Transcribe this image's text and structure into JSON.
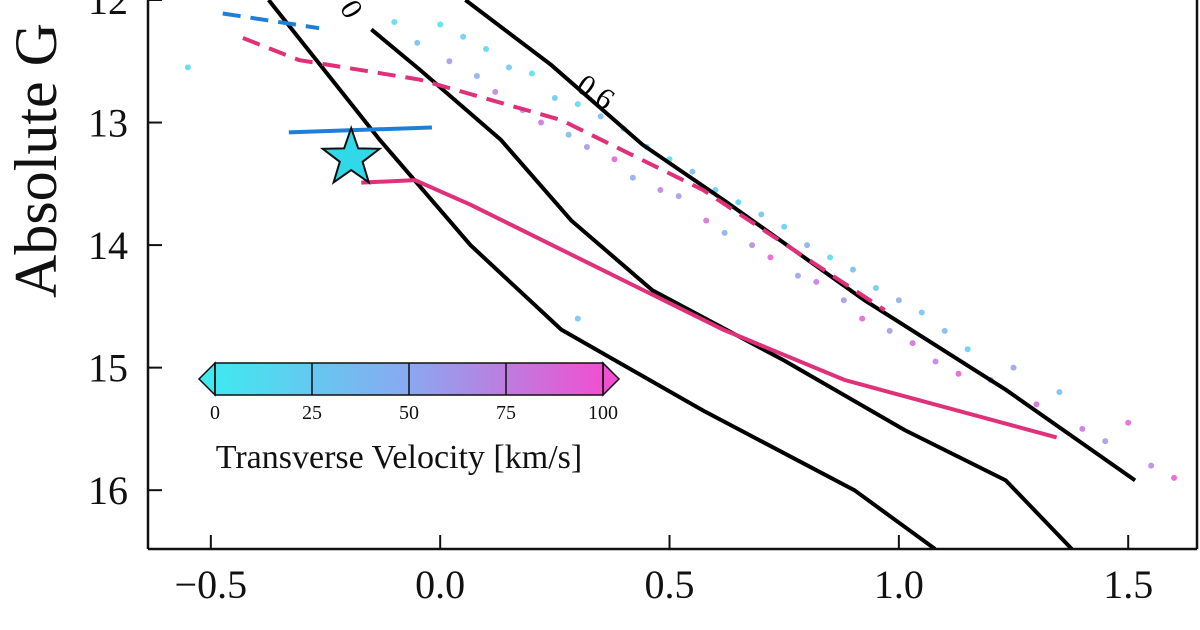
{
  "chart_data": {
    "type": "scatter",
    "ylabel": "Absolute G",
    "xlim": [
      -0.637,
      1.65
    ],
    "ylim": [
      12.0,
      16.48
    ],
    "y_inverted": true,
    "xticks": [
      {
        "value": -0.5,
        "label": "−0.5"
      },
      {
        "value": 0,
        "label": "0.0"
      },
      0.5,
      {
        "value": 1,
        "label": "1.0"
      },
      1.5
    ],
    "yticks": [
      12,
      13,
      14,
      15,
      16
    ],
    "annotations": [
      "0",
      "0.6"
    ],
    "points": {
      "x": [
        -0.1,
        -0.05,
        0.0,
        0.02,
        0.05,
        0.08,
        0.1,
        0.12,
        0.15,
        0.18,
        0.2,
        0.22,
        0.25,
        0.28,
        0.3,
        0.32,
        0.35,
        0.38,
        0.4,
        0.42,
        0.45,
        0.48,
        0.5,
        0.52,
        0.55,
        0.58,
        0.6,
        0.62,
        0.65,
        0.68,
        0.7,
        0.72,
        0.75,
        0.78,
        0.8,
        0.82,
        0.85,
        0.88,
        0.9,
        0.92,
        0.95,
        0.98,
        1.0,
        1.03,
        1.05,
        1.08,
        1.1,
        1.13,
        1.15,
        1.2,
        1.25,
        1.3,
        1.35,
        1.4,
        1.45,
        1.5,
        1.55,
        1.6,
        -0.55,
        0.3
      ],
      "y": [
        12.18,
        12.35,
        12.2,
        12.5,
        12.3,
        12.62,
        12.4,
        12.75,
        12.55,
        12.9,
        12.6,
        13.0,
        12.8,
        13.1,
        12.85,
        13.2,
        12.95,
        13.3,
        13.05,
        13.45,
        13.2,
        13.55,
        13.3,
        13.6,
        13.4,
        13.8,
        13.55,
        13.9,
        13.65,
        14.0,
        13.75,
        14.1,
        13.85,
        14.25,
        14.0,
        14.3,
        14.1,
        14.45,
        14.2,
        14.6,
        14.35,
        14.7,
        14.45,
        14.8,
        14.55,
        14.95,
        14.7,
        15.05,
        14.85,
        15.1,
        15.0,
        15.3,
        15.2,
        15.5,
        15.6,
        15.45,
        15.8,
        15.9,
        12.55,
        14.6
      ],
      "c": [
        10,
        35,
        5,
        60,
        20,
        45,
        15,
        70,
        30,
        55,
        8,
        80,
        25,
        40,
        12,
        65,
        35,
        90,
        18,
        50,
        28,
        75,
        10,
        60,
        40,
        85,
        22,
        48,
        15,
        70,
        33,
        95,
        20,
        55,
        45,
        80,
        12,
        65,
        38,
        90,
        25,
        60,
        50,
        85,
        30,
        75,
        42,
        95,
        20,
        70,
        55,
        88,
        35,
        80,
        60,
        92,
        70,
        98,
        15,
        30
      ]
    },
    "clim": [
      0,
      100
    ],
    "colormap": [
      "#40e8f0",
      "#8aa8f0",
      "#f050d0"
    ],
    "colorbar": {
      "label": "Transverse Velocity [km/s]",
      "ticks": [
        0,
        25,
        50,
        75,
        100
      ]
    },
    "lines": [
      {
        "color": "#000000",
        "style": "solid",
        "x": [
          -0.374,
          -0.132,
          0.066,
          0.264,
          0.573,
          0.903,
          1.079
        ],
        "y": [
          12.0,
          13.14,
          14.0,
          14.69,
          15.35,
          16.0,
          16.48
        ]
      },
      {
        "color": "#000000",
        "style": "solid",
        "x": [
          -0.15,
          -0.044,
          0.132,
          0.286,
          0.463,
          0.749,
          1.013,
          1.233,
          1.377
        ],
        "y": [
          12.24,
          12.57,
          13.14,
          13.8,
          14.37,
          14.94,
          15.51,
          15.92,
          16.48
        ]
      },
      {
        "color": "#000000",
        "style": "solid",
        "x": [
          0.055,
          0.242,
          0.441,
          0.617,
          0.925,
          1.233,
          1.515
        ],
        "y": [
          12.0,
          12.53,
          13.18,
          13.63,
          14.45,
          15.18,
          15.92
        ]
      },
      {
        "color": "#e0307a",
        "style": "solid",
        "x": [
          -0.172,
          -0.055,
          0.066,
          0.352,
          0.617,
          0.881,
          1.344
        ],
        "y": [
          13.49,
          13.47,
          13.67,
          14.2,
          14.69,
          15.1,
          15.57
        ]
      },
      {
        "color": "#e0307a",
        "style": "dashed",
        "x": [
          -0.43,
          -0.308,
          -0.044,
          0.264,
          0.573,
          0.969
        ],
        "y": [
          12.31,
          12.49,
          12.65,
          12.98,
          13.55,
          14.53
        ]
      },
      {
        "color": "#1e7fd8",
        "style": "solid",
        "x": [
          -0.33,
          -0.018
        ],
        "y": [
          13.08,
          13.04
        ]
      },
      {
        "color": "#1e7fd8",
        "style": "dashed",
        "x": [
          -0.474,
          -0.264
        ],
        "y": [
          12.11,
          12.23
        ]
      }
    ],
    "star": {
      "x": -0.194,
      "y": 13.29,
      "color": "#30d8e8"
    }
  }
}
